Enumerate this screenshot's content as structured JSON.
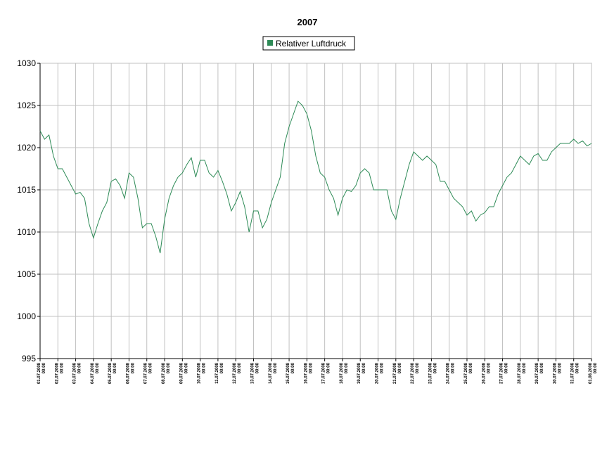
{
  "chart_data": {
    "type": "line",
    "title": "2007",
    "x": [
      0,
      0.25,
      0.5,
      0.75,
      1,
      1.25,
      1.5,
      1.75,
      2,
      2.25,
      2.5,
      2.75,
      3,
      3.25,
      3.5,
      3.75,
      4,
      4.25,
      4.5,
      4.75,
      5,
      5.25,
      5.5,
      5.75,
      6,
      6.25,
      6.5,
      6.75,
      7,
      7.25,
      7.5,
      7.75,
      8,
      8.25,
      8.5,
      8.75,
      9,
      9.25,
      9.5,
      9.75,
      10,
      10.25,
      10.5,
      10.75,
      11,
      11.25,
      11.5,
      11.75,
      12,
      12.25,
      12.5,
      12.75,
      13,
      13.25,
      13.5,
      13.75,
      14,
      14.25,
      14.5,
      14.75,
      15,
      15.25,
      15.5,
      15.75,
      16,
      16.25,
      16.5,
      16.75,
      17,
      17.25,
      17.5,
      17.75,
      18,
      18.25,
      18.5,
      18.75,
      19,
      19.25,
      19.5,
      19.75,
      20,
      20.25,
      20.5,
      20.75,
      21,
      21.25,
      21.5,
      21.75,
      22,
      22.25,
      22.5,
      22.75,
      23,
      23.25,
      23.5,
      23.75,
      24,
      24.25,
      24.5,
      24.75,
      25,
      25.25,
      25.5,
      25.75,
      26,
      26.25,
      26.5,
      26.75,
      27,
      27.25,
      27.5,
      27.75,
      28,
      28.25,
      28.5,
      28.75,
      29,
      29.25,
      29.5,
      29.75,
      30,
      30.25,
      30.5,
      30.75,
      31
    ],
    "series": [
      {
        "name": "Relativer Luftdruck",
        "color": "#2e8b57",
        "values": [
          1022,
          1021,
          1021.5,
          1019,
          1017.5,
          1017.5,
          1016.5,
          1015.5,
          1014.5,
          1014.7,
          1014,
          1011,
          1009.3,
          1011,
          1012.5,
          1013.5,
          1016,
          1016.3,
          1015.5,
          1014,
          1017,
          1016.5,
          1014,
          1010.5,
          1011,
          1011,
          1009.5,
          1007.5,
          1011.5,
          1014,
          1015.5,
          1016.5,
          1017,
          1018,
          1018.8,
          1016.5,
          1018.5,
          1018.5,
          1017,
          1016.5,
          1017.3,
          1016,
          1014.5,
          1012.5,
          1013.5,
          1014.8,
          1013,
          1010,
          1012.5,
          1012.5,
          1010.5,
          1011.5,
          1013.5,
          1015,
          1016.5,
          1020.5,
          1022.5,
          1024,
          1025.5,
          1025,
          1024,
          1022,
          1019,
          1017,
          1016.5,
          1015,
          1014,
          1012,
          1014,
          1015,
          1014.8,
          1015.5,
          1017,
          1017.5,
          1017,
          1015,
          1015,
          1015,
          1015,
          1012.5,
          1011.5,
          1014,
          1016,
          1018,
          1019.5,
          1019,
          1018.5,
          1019,
          1018.5,
          1018,
          1016,
          1016,
          1015,
          1014,
          1013.5,
          1013,
          1012,
          1012.5,
          1011.3,
          1012,
          1012.3,
          1013,
          1013,
          1014.5,
          1015.5,
          1016.5,
          1017,
          1018,
          1019,
          1018.5,
          1018,
          1019,
          1019.3,
          1018.5,
          1018.5,
          1019.5,
          1020,
          1020.5,
          1020.5,
          1020.5,
          1021,
          1020.5,
          1020.8,
          1020.2,
          1020.5
        ]
      }
    ],
    "xlim": [
      0,
      31
    ],
    "xticks": [
      {
        "value": 0,
        "label": "01.07.2008\n00:00"
      },
      {
        "value": 1,
        "label": "02.07.2008\n00:00"
      },
      {
        "value": 2,
        "label": "03.07.2008\n00:00"
      },
      {
        "value": 3,
        "label": "04.07.2008\n00:00"
      },
      {
        "value": 4,
        "label": "05.07.2008\n00:00"
      },
      {
        "value": 5,
        "label": "06.07.2008\n00:00"
      },
      {
        "value": 6,
        "label": "07.07.2008\n00:00"
      },
      {
        "value": 7,
        "label": "08.07.2008\n00:00"
      },
      {
        "value": 8,
        "label": "09.07.2008\n00:00"
      },
      {
        "value": 9,
        "label": "10.07.2008\n00:00"
      },
      {
        "value": 10,
        "label": "11.07.2008\n00:00"
      },
      {
        "value": 11,
        "label": "12.07.2008\n00:00"
      },
      {
        "value": 12,
        "label": "13.07.2008\n00:00"
      },
      {
        "value": 13,
        "label": "14.07.2008\n00:00"
      },
      {
        "value": 14,
        "label": "15.07.2008\n00:00"
      },
      {
        "value": 15,
        "label": "16.07.2008\n00:00"
      },
      {
        "value": 16,
        "label": "17.07.2008\n00:00"
      },
      {
        "value": 17,
        "label": "18.07.2008\n00:00"
      },
      {
        "value": 18,
        "label": "19.07.2008\n00:00"
      },
      {
        "value": 19,
        "label": "20.07.2008\n00:00"
      },
      {
        "value": 20,
        "label": "21.07.2008\n00:00"
      },
      {
        "value": 21,
        "label": "22.07.2008\n00:00"
      },
      {
        "value": 22,
        "label": "23.07.2008\n00:00"
      },
      {
        "value": 23,
        "label": "24.07.2008\n00:00"
      },
      {
        "value": 24,
        "label": "25.07.2008\n00:00"
      },
      {
        "value": 25,
        "label": "26.07.2008\n00:00"
      },
      {
        "value": 26,
        "label": "27.07.2008\n00:00"
      },
      {
        "value": 27,
        "label": "28.07.2008\n00:00"
      },
      {
        "value": 28,
        "label": "29.07.2008\n00:00"
      },
      {
        "value": 29,
        "label": "30.07.2008\n00:00"
      },
      {
        "value": 30,
        "label": "31.07.2008\n00:00"
      },
      {
        "value": 31,
        "label": "01.08.2008\n00:00"
      }
    ],
    "ylim": [
      995,
      1030
    ],
    "yticks": [
      995,
      1000,
      1005,
      1010,
      1015,
      1020,
      1025,
      1030
    ],
    "grid": true,
    "legend": "top"
  }
}
